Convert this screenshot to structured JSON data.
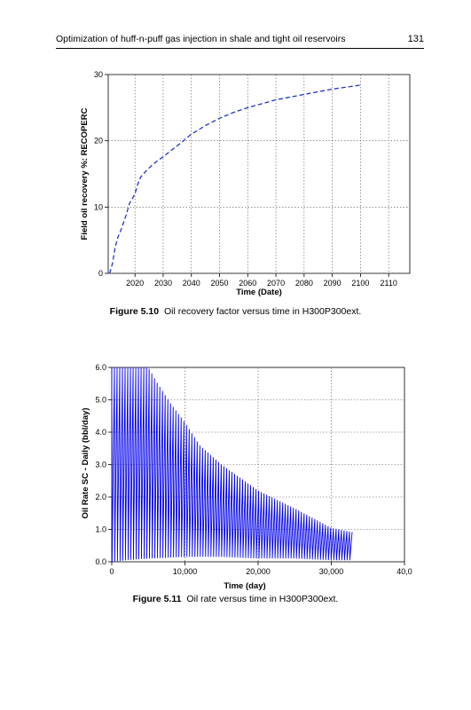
{
  "header": {
    "title": "Optimization of huff-n-puff gas injection in shale and tight oil reservoirs",
    "page_number": "131"
  },
  "figures": [
    {
      "label": "Figure 5.10",
      "caption": "Oil recovery factor versus time in H300P300ext."
    },
    {
      "label": "Figure 5.11",
      "caption": "Oil rate versus time in H300P300ext."
    }
  ],
  "chart_data": [
    {
      "type": "line",
      "xlabel": "Time (Date)",
      "ylabel": "Field oil recovery %: RECOPERC",
      "x_ticks": [
        "2020",
        "2030",
        "2040",
        "2050",
        "2060",
        "2070",
        "2080",
        "2090",
        "2100",
        "2110"
      ],
      "y_ticks": [
        "0",
        "10",
        "20",
        "30"
      ],
      "xlim": [
        2010.5,
        2117.5
      ],
      "ylim": [
        0,
        30
      ],
      "grid": true,
      "series": [
        {
          "color": "#2233cc",
          "style": "dashed",
          "x": [
            2011,
            2012,
            2013,
            2014,
            2015,
            2017,
            2018,
            2020,
            2021,
            2022,
            2024,
            2026,
            2028,
            2030,
            2033,
            2036,
            2038,
            2040,
            2045,
            2050,
            2055,
            2060,
            2065,
            2070,
            2080,
            2090,
            2100
          ],
          "y": [
            0,
            1.5,
            4,
            5.5,
            6.5,
            9,
            10.5,
            12,
            13.5,
            14.5,
            15.5,
            16.3,
            17,
            17.6,
            18.6,
            19.6,
            20.3,
            21,
            22.3,
            23.4,
            24.3,
            25,
            25.6,
            26.2,
            27,
            27.8,
            28.4
          ]
        }
      ]
    },
    {
      "type": "line",
      "xlabel": "Time (day)",
      "ylabel": "Oil Rate SC - Daily (bbl/day)",
      "x_ticks": [
        "0",
        "10,000",
        "20,000",
        "30,000",
        "40,0"
      ],
      "y_ticks": [
        "0.0",
        "1.0",
        "2.0",
        "3.0",
        "4.0",
        "5.0",
        "6.0"
      ],
      "xlim": [
        0,
        40000
      ],
      "ylim": [
        0,
        6
      ],
      "grid": true,
      "series": [
        {
          "color": "#0000ee",
          "cycle_days": 365,
          "end_day": 32800,
          "peak_points": {
            "x": [
              0,
              5000,
              6000,
              8000,
              10000,
              12000,
              15000,
              20000,
              25000,
              30000,
              32800
            ],
            "y": [
              6.0,
              6.0,
              5.6,
              4.9,
              4.3,
              3.6,
              3.0,
              2.2,
              1.65,
              1.05,
              0.92
            ]
          },
          "trough_points": {
            "x": [
              0,
              2000,
              5000,
              10000,
              15000,
              20000,
              25000,
              30000,
              32800
            ],
            "y": [
              0,
              0.05,
              0.1,
              0.15,
              0.15,
              0.1,
              0.1,
              0.05,
              0.05
            ]
          }
        }
      ]
    }
  ]
}
